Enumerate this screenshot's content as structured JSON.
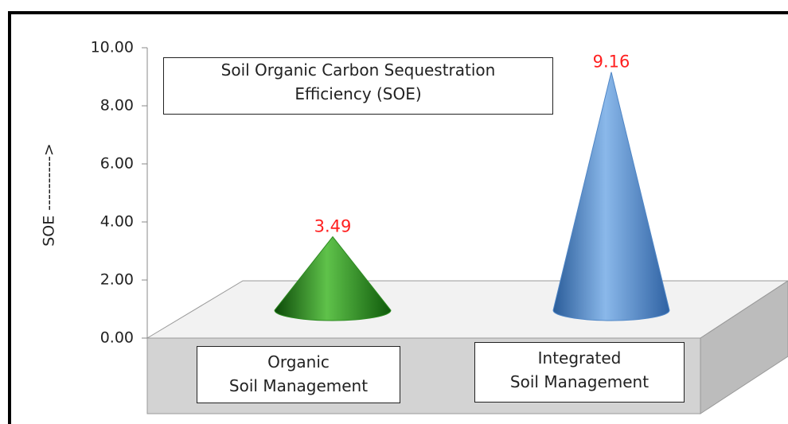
{
  "chart_data": {
    "type": "cone",
    "title": "Soil Organic Carbon Sequestration\nEfficiency  (SOE)",
    "y_label": "SOE ---------->",
    "categories": [
      "Organic\nSoil Management",
      "Integrated\nSoil Management"
    ],
    "series": [
      {
        "name": "SOE",
        "colors": [
          "#2e8b22",
          "#4f86c6"
        ],
        "values": [
          3.49,
          9.16
        ]
      }
    ],
    "ylim": [
      0,
      10
    ],
    "yticks": [
      {
        "value": 0,
        "label": "0.00"
      },
      {
        "value": 2,
        "label": "2.00"
      },
      {
        "value": 4,
        "label": "4.00"
      },
      {
        "value": 6,
        "label": "6.00"
      },
      {
        "value": 8,
        "label": "8.00"
      },
      {
        "value": 10,
        "label": "10.00"
      }
    ],
    "value_label_color": "#ff2020"
  }
}
